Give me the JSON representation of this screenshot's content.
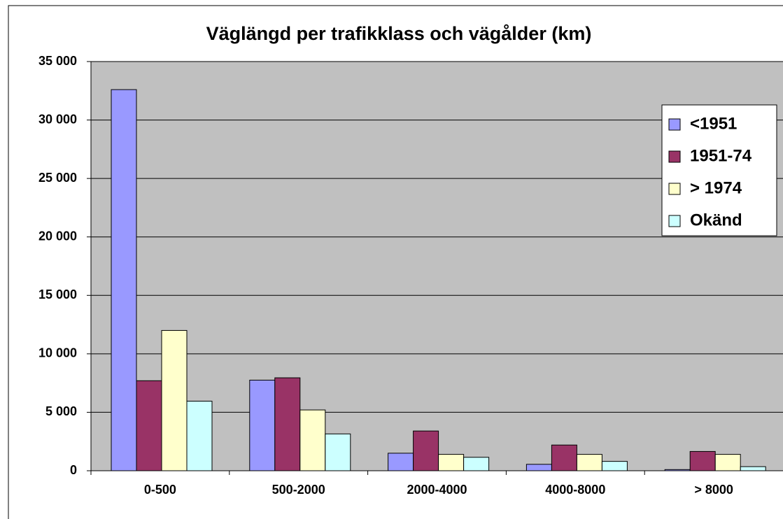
{
  "chart_data": {
    "type": "bar",
    "title": "Väglängd per trafikklass och vägålder (km)",
    "categories": [
      "0-500",
      "500-2000",
      "2000-4000",
      "4000-8000",
      "> 8000"
    ],
    "series": [
      {
        "name": "<1951",
        "color": "#9999ff",
        "values": [
          32600,
          7750,
          1500,
          550,
          100
        ]
      },
      {
        "name": "1951-74",
        "color": "#993366",
        "values": [
          7700,
          7950,
          3400,
          2200,
          1650
        ]
      },
      {
        "name": "> 1974",
        "color": "#ffffcc",
        "values": [
          12000,
          5200,
          1400,
          1400,
          1400
        ]
      },
      {
        "name": "Okänd",
        "color": "#ccffff",
        "values": [
          5950,
          3150,
          1150,
          800,
          350
        ]
      }
    ],
    "ylim": [
      0,
      35000
    ],
    "yticks": [
      0,
      {
        "value": 5000,
        "label": "5 000"
      },
      {
        "value": 10000,
        "label": "10 000"
      },
      {
        "value": 15000,
        "label": "15 000"
      },
      {
        "value": 20000,
        "label": "20 000"
      },
      {
        "value": 25000,
        "label": "25 000"
      },
      {
        "value": 30000,
        "label": "30 000"
      },
      {
        "value": 35000,
        "label": "35 000"
      }
    ],
    "grid": true,
    "legend": "right"
  }
}
